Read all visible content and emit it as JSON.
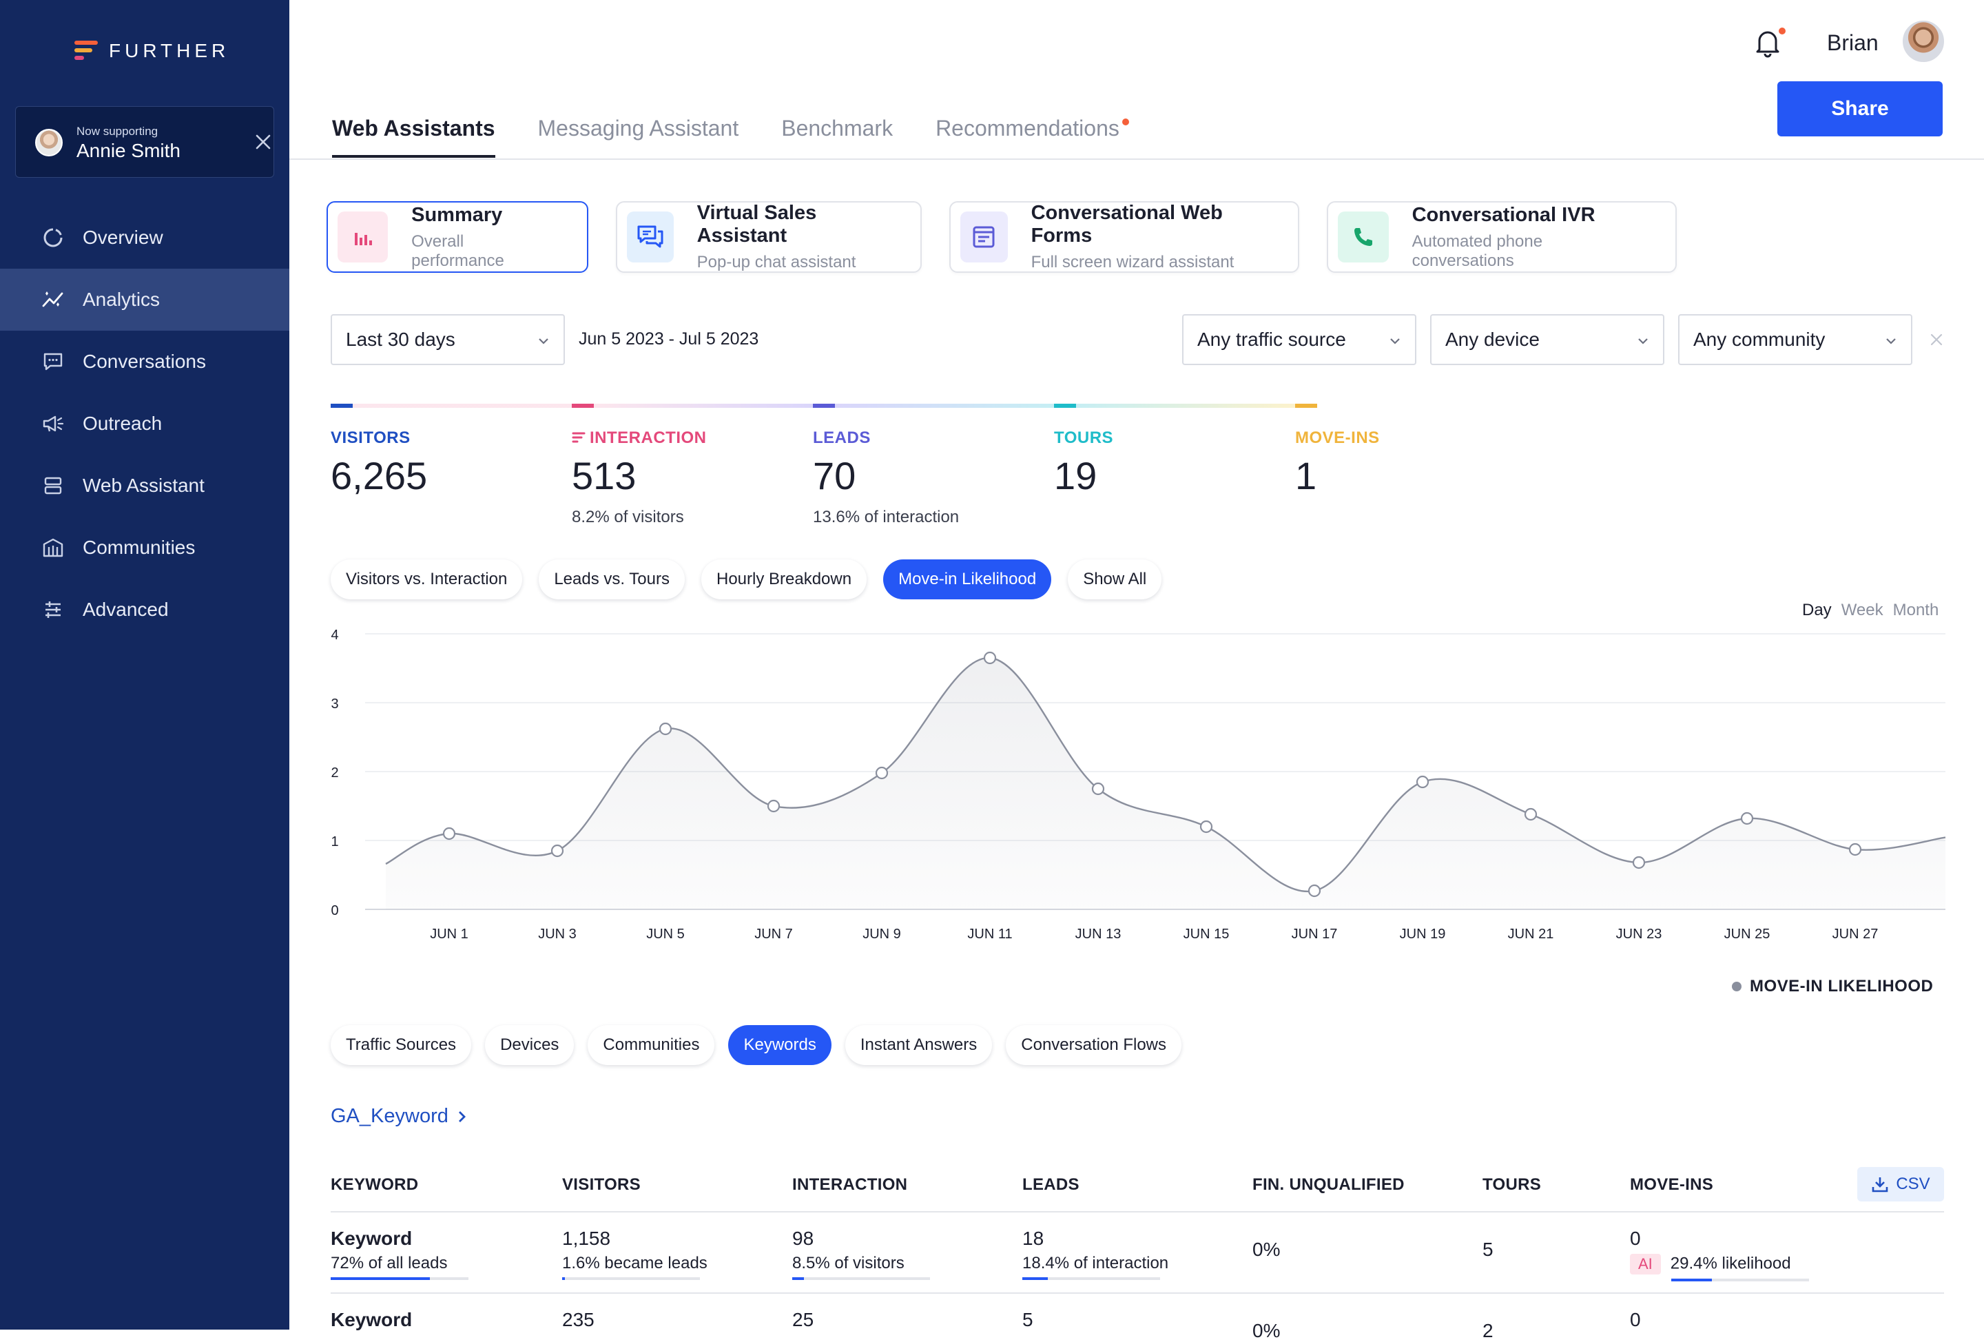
{
  "brand": {
    "name": "FURTHER"
  },
  "support": {
    "label": "Now supporting",
    "name": "Annie Smith"
  },
  "nav": [
    {
      "label": "Overview",
      "icon": "overview-icon",
      "active": false
    },
    {
      "label": "Analytics",
      "icon": "analytics-icon",
      "active": true
    },
    {
      "label": "Conversations",
      "icon": "conversations-icon",
      "active": false
    },
    {
      "label": "Outreach",
      "icon": "megaphone-icon",
      "active": false
    },
    {
      "label": "Web Assistant",
      "icon": "web-assistant-icon",
      "active": false
    },
    {
      "label": "Communities",
      "icon": "building-icon",
      "active": false
    },
    {
      "label": "Advanced",
      "icon": "sliders-icon",
      "active": false
    }
  ],
  "header": {
    "user_name": "Brian",
    "share_label": "Share"
  },
  "tabs": [
    {
      "label": "Web Assistants",
      "active": true
    },
    {
      "label": "Messaging Assistant",
      "active": false
    },
    {
      "label": "Benchmark",
      "active": false
    },
    {
      "label": "Recommendations",
      "active": false,
      "dot": true
    }
  ],
  "cards": [
    {
      "title": "Summary",
      "subtitle": "Overall performance",
      "active": true
    },
    {
      "title": "Virtual Sales Assistant",
      "subtitle": "Pop-up chat assistant",
      "active": false
    },
    {
      "title": "Conversational Web Forms",
      "subtitle": "Full screen wizard assistant",
      "active": false
    },
    {
      "title": "Conversational IVR",
      "subtitle": "Automated phone conversations",
      "active": false
    }
  ],
  "filters": {
    "range": "Last 30 days",
    "date_range": "Jun 5 2023 - Jul 5 2023",
    "traffic": "Any traffic source",
    "device": "Any device",
    "community": "Any community"
  },
  "kpis": [
    {
      "label": "VISITORS",
      "value": "6,265",
      "sub": "",
      "color": "#1f4fc2",
      "fade": "#f6a8c0"
    },
    {
      "label": "INTERACTION",
      "value": "513",
      "sub": "8.2% of visitors",
      "color": "#e4497b",
      "fade": "#7b6cf0"
    },
    {
      "label": "LEADS",
      "value": "70",
      "sub": "13.6% of interaction",
      "color": "#5b5bd6",
      "fade": "#34c3d6"
    },
    {
      "label": "TOURS",
      "value": "19",
      "sub": "",
      "color": "#1fbcc9",
      "fade": "#f5d04a"
    },
    {
      "label": "MOVE-INS",
      "value": "1",
      "sub": "",
      "color": "#f0b43c",
      "fade": "#ffffff"
    }
  ],
  "chart_tabs": [
    {
      "label": "Visitors vs. Interaction",
      "active": false
    },
    {
      "label": "Leads vs. Tours",
      "active": false
    },
    {
      "label": "Hourly Breakdown",
      "active": false
    },
    {
      "label": "Move-in Likelihood",
      "active": true
    },
    {
      "label": "Show All",
      "active": false
    }
  ],
  "period": {
    "day": "Day",
    "week": "Week",
    "month": "Month",
    "selected": "Day"
  },
  "chart_data": {
    "type": "line",
    "x": [
      "JUN 1",
      "JUN 3",
      "JUN 5",
      "JUN 7",
      "JUN 9",
      "JUN 11",
      "JUN 13",
      "JUN 15",
      "JUN 17",
      "JUN 19",
      "JUN 21",
      "JUN 23",
      "JUN 25",
      "JUN 27"
    ],
    "series": [
      {
        "name": "MOVE-IN LIKELIHOOD",
        "values": [
          1.1,
          0.85,
          2.62,
          1.5,
          1.98,
          3.65,
          1.75,
          1.2,
          0.27,
          1.85,
          1.38,
          0.68,
          1.32,
          0.87
        ]
      }
    ],
    "ylim": [
      0,
      4
    ],
    "yticks": [
      "0",
      "1",
      "2",
      "3",
      "4"
    ],
    "grid": true,
    "legend": "bottom-right",
    "color": "#8a8f9d"
  },
  "table_tabs": [
    {
      "label": "Traffic Sources",
      "active": false
    },
    {
      "label": "Devices",
      "active": false
    },
    {
      "label": "Communities",
      "active": false
    },
    {
      "label": "Keywords",
      "active": true
    },
    {
      "label": "Instant Answers",
      "active": false
    },
    {
      "label": "Conversation Flows",
      "active": false
    }
  ],
  "table": {
    "title": "GA_Keyword",
    "csv_label": "CSV",
    "columns": [
      "KEYWORD",
      "VISITORS",
      "INTERACTION",
      "LEADS",
      "FIN. UNQUALIFIED",
      "TOURS",
      "MOVE-INS"
    ],
    "rows": [
      {
        "keyword": "Keyword",
        "keyword_sub": "72% of all leads",
        "keyword_pct": 0.72,
        "visitors": "1,158",
        "visitors_sub": "1.6% became leads",
        "visitors_pct": 0.016,
        "interaction": "98",
        "interaction_sub": "8.5% of visitors",
        "interaction_pct": 0.085,
        "leads": "18",
        "leads_sub": "18.4% of interaction",
        "leads_pct": 0.184,
        "fin_unqualified": "0%",
        "tours": "5",
        "move_ins": "0",
        "ai_label": "AI",
        "likelihood": "29.4% likelihood",
        "likelihood_pct": 0.294
      },
      {
        "keyword": "Keyword",
        "visitors": "235",
        "interaction": "25",
        "leads": "5",
        "fin_unqualified": "0%",
        "tours": "2",
        "move_ins": "0"
      }
    ]
  }
}
